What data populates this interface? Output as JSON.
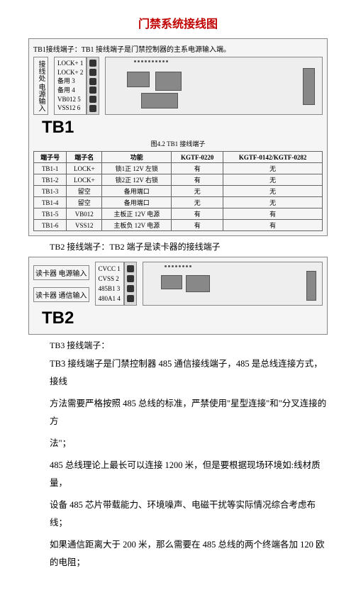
{
  "title": "门禁系统接线图",
  "tb1": {
    "header": "TB1接线端子：TB1 接线端子是门禁控制器的主系电源输入端。",
    "side_label_top": "接线处\n电源输入",
    "pins": [
      {
        "label": "LOCK+ 1"
      },
      {
        "label": "LOCK+ 2"
      },
      {
        "label": "备用 3"
      },
      {
        "label": "备用 4"
      },
      {
        "label": "VB012 5"
      },
      {
        "label": "VSS12 6"
      }
    ],
    "name": "TB1",
    "fig_caption": "图4.2 TB1 接线端子",
    "table": {
      "columns": [
        "端子号",
        "端子名",
        "功能",
        "KGTF-0220",
        "KGTF-0142/KGTF-0282"
      ],
      "rows": [
        [
          "TB1-1",
          "LOCK+",
          "锁1正 12V 左锁",
          "有",
          "无"
        ],
        [
          "TB1-2",
          "LOCK+",
          "锁2正 12V 右锁",
          "有",
          "无"
        ],
        [
          "TB1-3",
          "留空",
          "备用端口",
          "无",
          "无"
        ],
        [
          "TB1-4",
          "留空",
          "备用端口",
          "无",
          "无"
        ],
        [
          "TB1-5",
          "VB012",
          "主板正 12V 电源",
          "有",
          "有"
        ],
        [
          "TB1-6",
          "VSS12",
          "主板负 12V 电源",
          "有",
          "有"
        ]
      ]
    }
  },
  "tb2": {
    "caption": "TB2 接线端子：TB2 端子是读卡器的接线端子",
    "side_label_top": "读卡器\n电源输入",
    "side_label_bot": "读卡器\n通信输入",
    "pins": [
      {
        "label": "CVCC 1"
      },
      {
        "label": "CVSS 2"
      },
      {
        "label": "485B1 3"
      },
      {
        "label": "480A1 4"
      }
    ],
    "name": "TB2"
  },
  "tb3": {
    "caption": "TB3 接线端子：",
    "p1": "TB3 接线端子是门禁控制器 485 通信接线端子，485 是总线连接方式，接线",
    "p2": "方法需要严格按照 485 总线的标准，严禁使用\"星型连接\"和\"分叉连接的方",
    "p3": "法\"；",
    "p4": "485 总线理论上最长可以连接 1200 米，但是要根据现场环境如:线材质量，",
    "p5": "设备 485 芯片带载能力、环境噪声、电磁干扰等实际情况综合考虑布线；",
    "p6": "如果通信距离大于 200 米，那么需要在 485 总线的两个终端各加 120 欧的电阻；"
  }
}
